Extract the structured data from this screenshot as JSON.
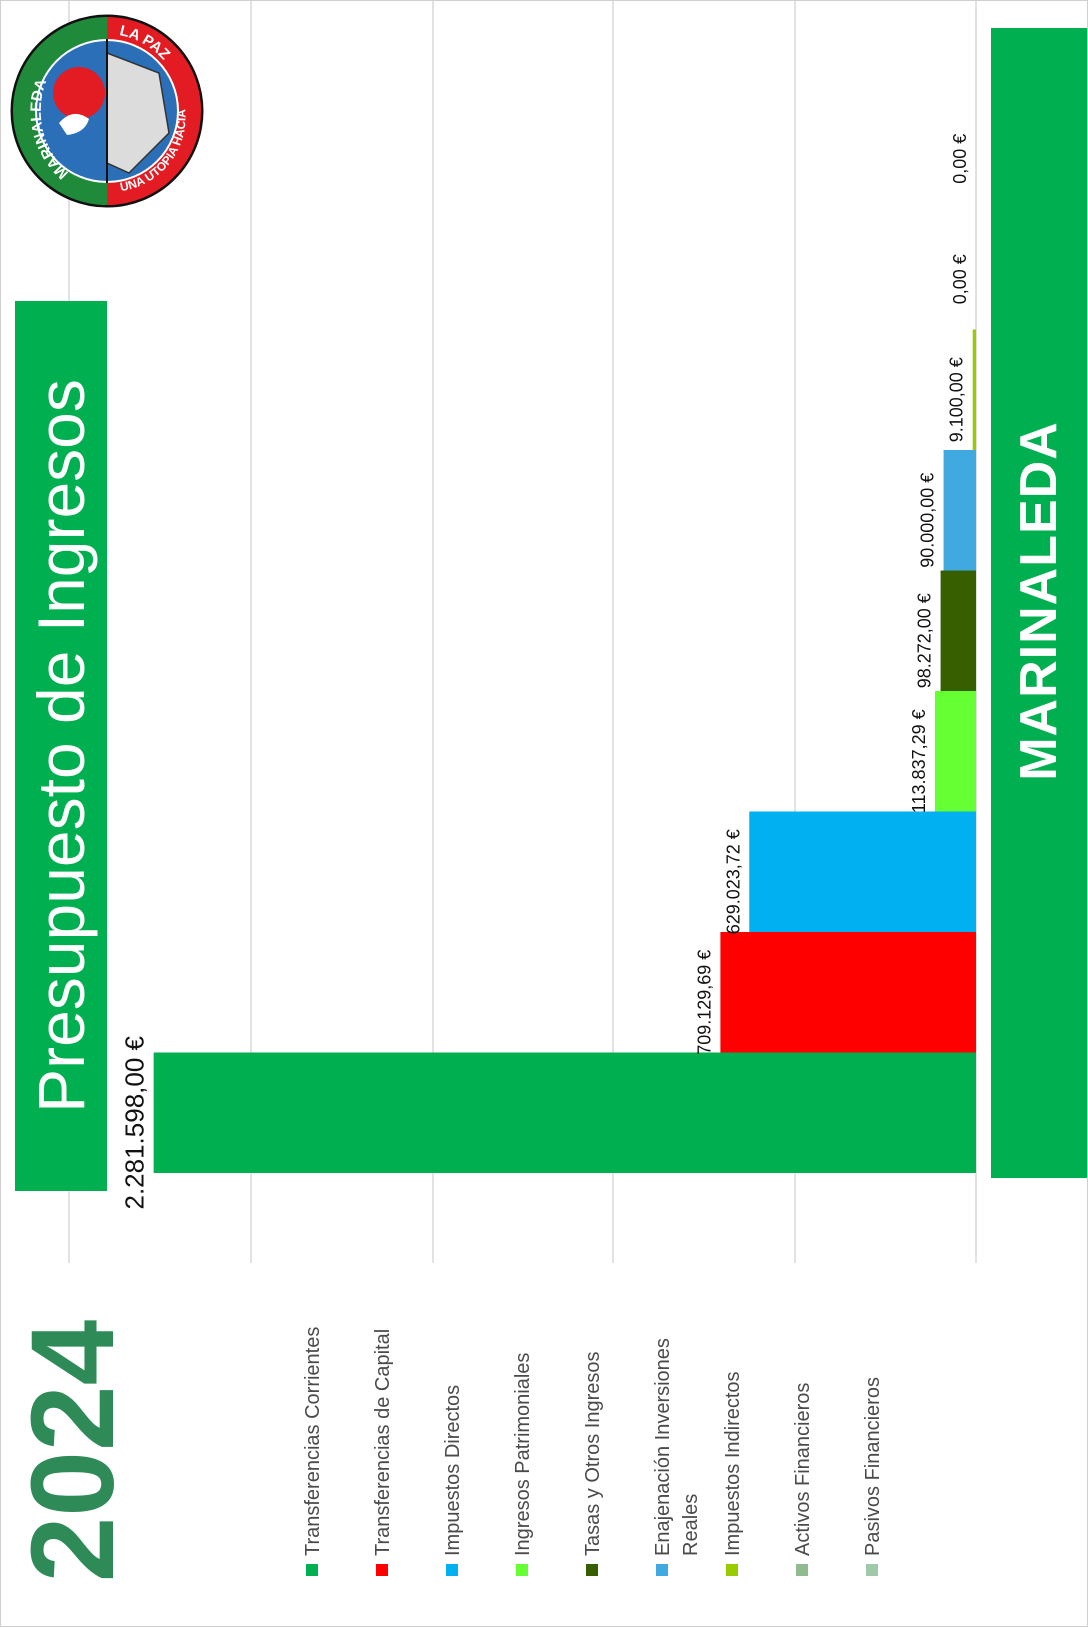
{
  "header": {
    "title": "Presupuesto de Ingresos",
    "year": "2024"
  },
  "brand": {
    "name": "MARINALEDA"
  },
  "logo": {
    "ring_left": "MARINALEDA",
    "ring_right": "LA PAZ",
    "ring_bottom": "UNA UTOPIA HACIA"
  },
  "colors": {
    "brand_green": "#00b050",
    "year_green": "#2e8b57"
  },
  "chart_data": {
    "type": "bar",
    "title": "Presupuesto de Ingresos",
    "ylim": [
      0,
      2300000
    ],
    "grid": true,
    "legend": "bottom",
    "categories": [
      "Transferencias Corrientes",
      "Transferencias de Capital",
      "Impuestos Directos",
      "Ingresos Patrimoniales",
      "Tasas y Otros Ingresos",
      "Enajenación Inversiones Reales",
      "Impuestos Indirectos",
      "Activos Financieros",
      "Pasivos Financieros"
    ],
    "legend_lines": [
      [
        "Transferencias Corrientes"
      ],
      [
        "Transferencias de Capital"
      ],
      [
        "Impuestos Directos"
      ],
      [
        "Ingresos Patrimoniales"
      ],
      [
        "Tasas y Otros Ingresos"
      ],
      [
        "Enajenación Inversiones",
        "Reales"
      ],
      [
        "Impuestos Indirectos"
      ],
      [
        "Activos Financieros"
      ],
      [
        "Pasivos Financieros"
      ]
    ],
    "values": [
      2281598.0,
      709129.69,
      629023.72,
      113837.29,
      98272.0,
      90000.0,
      9100.0,
      0.0,
      0.0
    ],
    "labels": [
      "2.281.598,00 €",
      "709.129,69 €",
      "629.023,72 €",
      "113.837,29 €",
      "98.272,00 €",
      "90.000,00 €",
      "9.100,00 €",
      "0,00 €",
      "0,00 €"
    ],
    "colors": [
      "#00b050",
      "#ff0000",
      "#00b0f0",
      "#66ff33",
      "#375f00",
      "#3fa9e0",
      "#99cc00",
      "#8fbc8f",
      "#9fc9a8"
    ]
  }
}
